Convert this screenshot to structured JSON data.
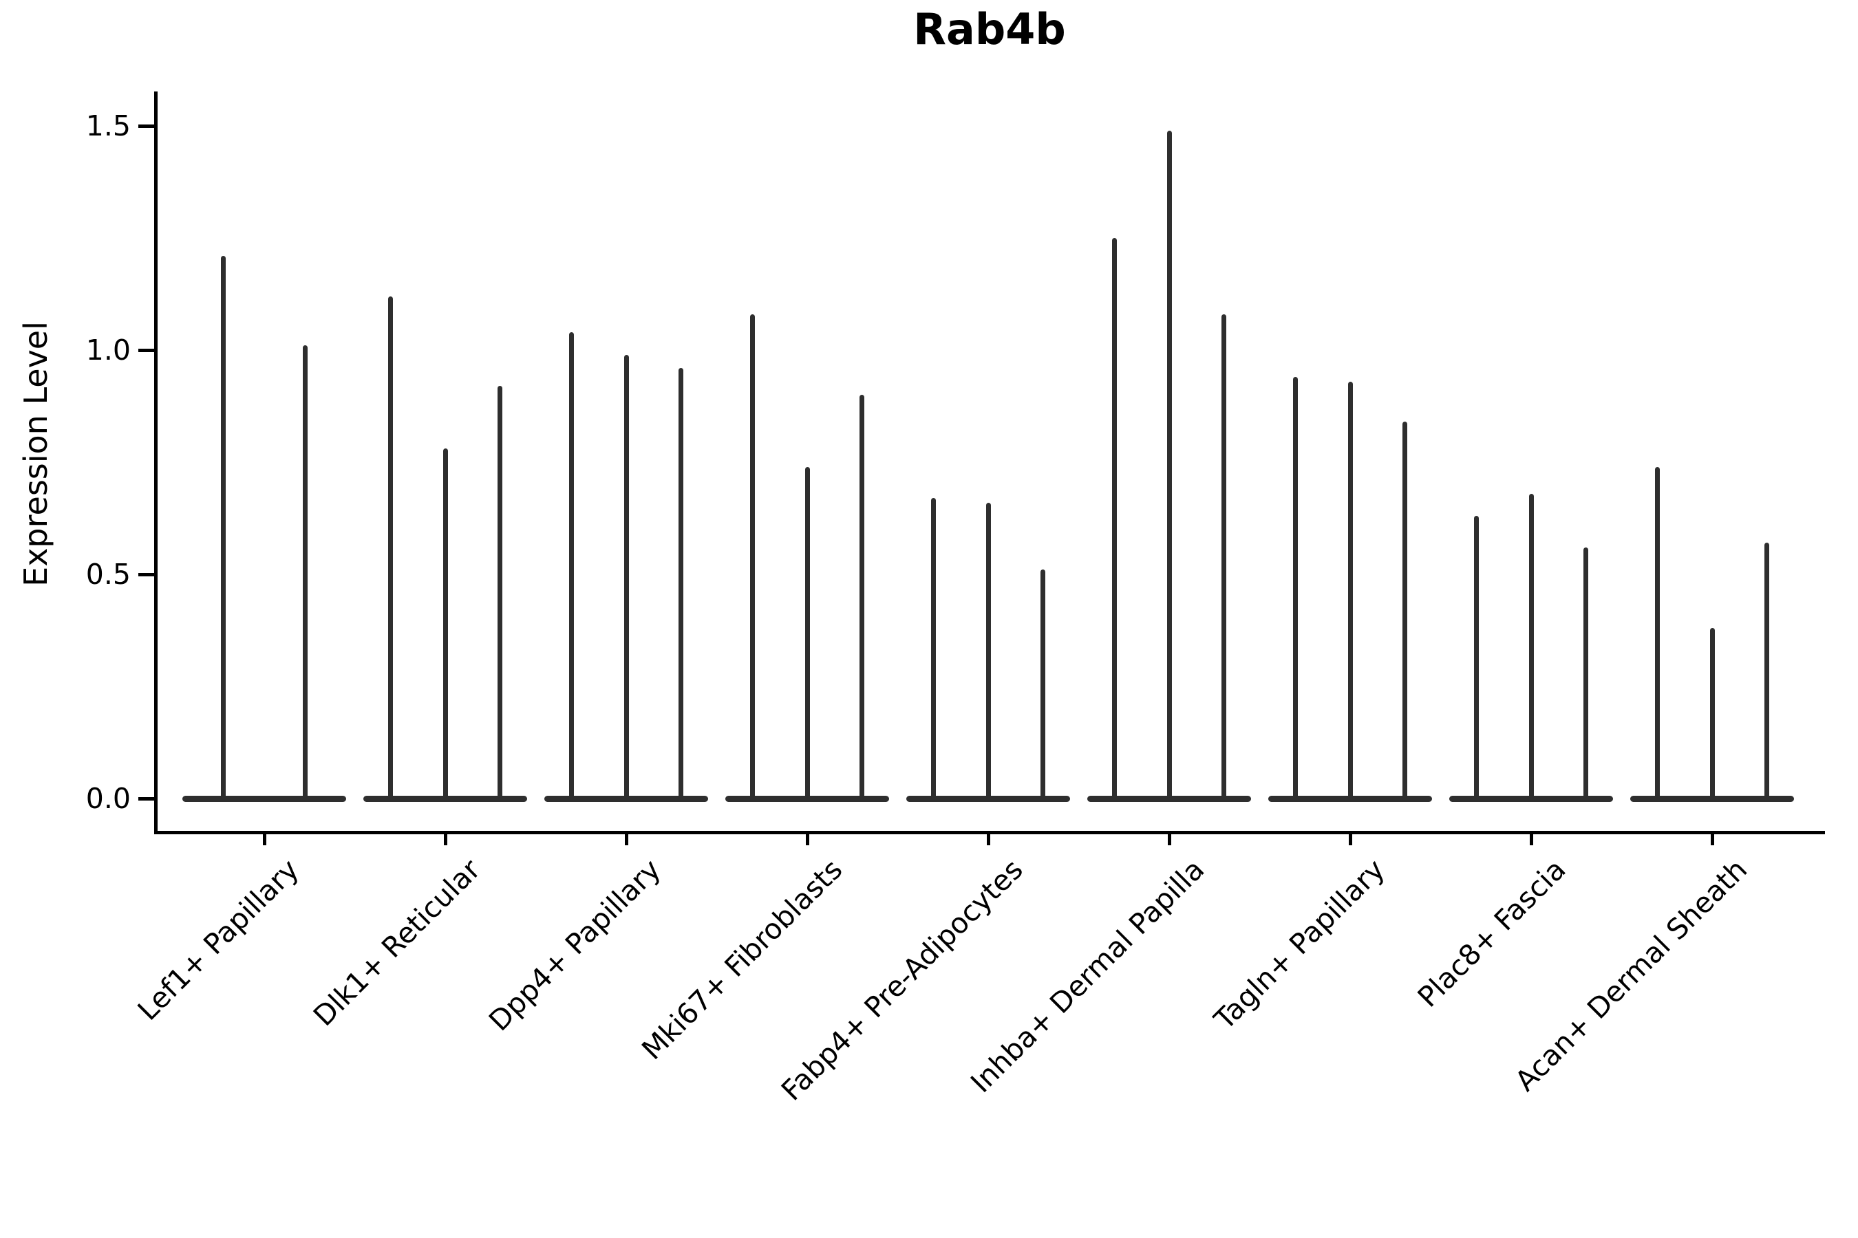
{
  "chart_data": {
    "type": "violin",
    "title": "Rab4b",
    "xlabel": "",
    "ylabel": "Expression Level",
    "ytick_labels": [
      "0.0",
      "0.5",
      "1.0",
      "1.5"
    ],
    "yticks": [
      0.0,
      0.5,
      1.0,
      1.5
    ],
    "ylim": [
      -0.07,
      1.57
    ],
    "x_tick_rotation": 45,
    "grid": false,
    "legend": false,
    "categories": [
      "Lef1+ Papillary",
      "Dlk1+ Reticular",
      "Dpp4+ Papillary",
      "Mki67+ Fibroblasts",
      "Fabp4+ Pre-Adipocytes",
      "Inhba+ Dermal Papilla",
      "Tagln+ Papillary",
      "Plac8+ Fascia",
      "Acan+ Dermal Sheath"
    ],
    "groups": [
      {
        "label": "Lef1+ Papillary",
        "violin_peaks": [
          1.21,
          1.01
        ]
      },
      {
        "label": "Dlk1+ Reticular",
        "violin_peaks": [
          1.12,
          0.78,
          0.92
        ]
      },
      {
        "label": "Dpp4+ Papillary",
        "violin_peaks": [
          1.04,
          0.99,
          0.96
        ]
      },
      {
        "label": "Mki67+ Fibroblasts",
        "violin_peaks": [
          1.08,
          0.74,
          0.9
        ]
      },
      {
        "label": "Fabp4+ Pre-Adipocytes",
        "violin_peaks": [
          0.67,
          0.66,
          0.51
        ]
      },
      {
        "label": "Inhba+ Dermal Papilla",
        "violin_peaks": [
          1.25,
          1.49,
          1.08
        ]
      },
      {
        "label": "Tagln+ Papillary",
        "violin_peaks": [
          0.94,
          0.93,
          0.84
        ]
      },
      {
        "label": "Plac8+ Fascia",
        "violin_peaks": [
          0.63,
          0.68,
          0.56
        ]
      },
      {
        "label": "Acan+ Dermal Sheath",
        "violin_peaks": [
          0.74,
          0.38,
          0.57
        ]
      }
    ],
    "note": "all violins have their wide base at expression level 0; values are the peak (max) expression of each thin violin"
  },
  "colors": {
    "violin_ink": "#2e2e2e",
    "axis": "#000000",
    "background": "#ffffff",
    "text": "#000000"
  }
}
